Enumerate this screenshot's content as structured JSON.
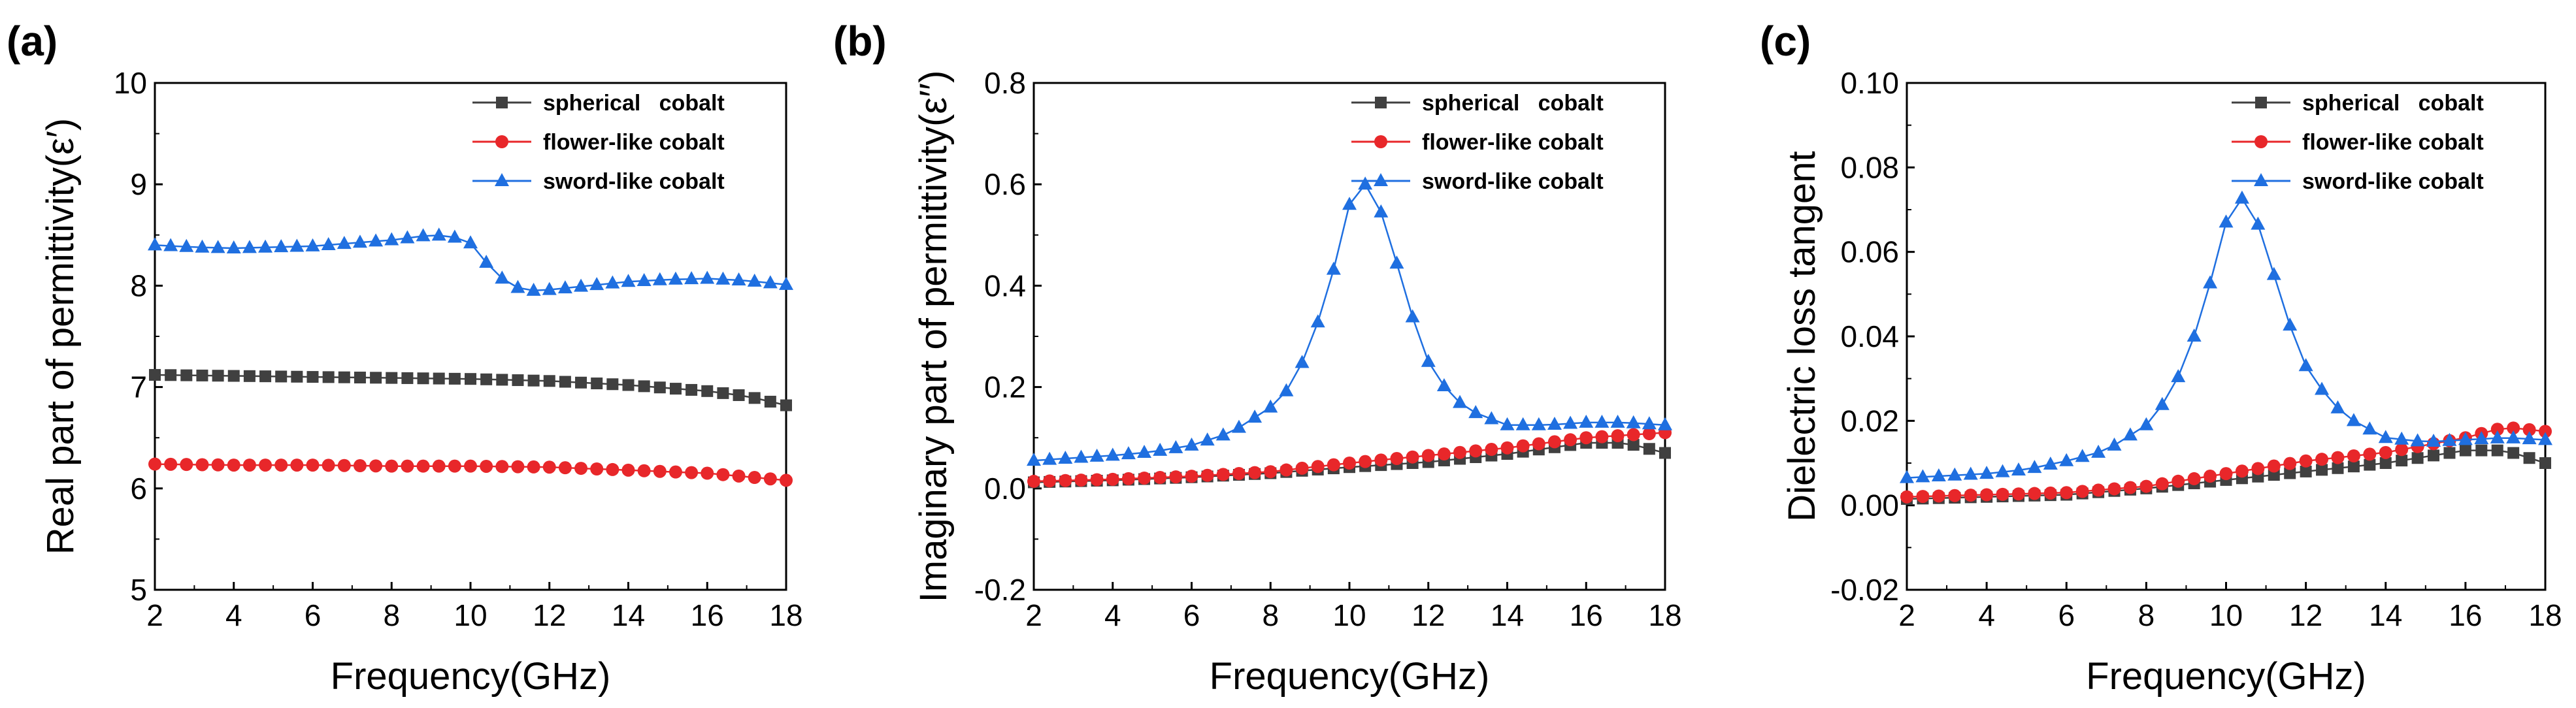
{
  "chart_data": [
    {
      "type": "line",
      "panel_label": "(a)",
      "xlabel": "Frequency(GHz)",
      "ylabel": "Real part of permittivity(ε′)",
      "xlim": [
        2,
        18
      ],
      "ylim": [
        5,
        10
      ],
      "xticks": [
        2,
        4,
        6,
        8,
        10,
        12,
        14,
        16,
        18
      ],
      "yticks": [
        5,
        6,
        7,
        8,
        9,
        10
      ],
      "xtick_labels": [
        "2",
        "4",
        "6",
        "8",
        "10",
        "12",
        "14",
        "16",
        "18"
      ],
      "ytick_labels": [
        "5",
        "6",
        "7",
        "8",
        "9",
        "10"
      ],
      "legend_position": "top-right",
      "series": [
        {
          "name": "spherical   cobalt",
          "color": "#404040",
          "marker": "square",
          "x": [
            2,
            4,
            6,
            8,
            10,
            12,
            14,
            16,
            17,
            18
          ],
          "y": [
            7.12,
            7.11,
            7.1,
            7.09,
            7.08,
            7.06,
            7.02,
            6.96,
            6.91,
            6.82
          ]
        },
        {
          "name": "flower-like cobalt",
          "color": "#e8272a",
          "marker": "circle",
          "x": [
            2,
            4,
            6,
            8,
            10,
            12,
            14,
            16,
            18
          ],
          "y": [
            6.24,
            6.23,
            6.23,
            6.22,
            6.22,
            6.21,
            6.18,
            6.15,
            6.08
          ]
        },
        {
          "name": "sword-like cobalt",
          "color": "#1f6fe0",
          "marker": "triangle",
          "x": [
            2,
            3,
            4,
            5,
            6,
            7,
            8,
            9,
            9.5,
            10,
            10.5,
            11,
            11.5,
            12,
            13,
            14,
            15,
            16,
            17,
            18
          ],
          "y": [
            8.4,
            8.38,
            8.37,
            8.38,
            8.39,
            8.42,
            8.45,
            8.5,
            8.49,
            8.42,
            8.18,
            8.0,
            7.95,
            7.96,
            8.0,
            8.04,
            8.06,
            8.07,
            8.05,
            8.01
          ]
        }
      ]
    },
    {
      "type": "line",
      "panel_label": "(b)",
      "xlabel": "Frequency(GHz)",
      "ylabel": "Imaginary part of permittivity(ε′′)",
      "xlim": [
        2,
        18
      ],
      "ylim": [
        -0.2,
        0.8
      ],
      "xticks": [
        2,
        4,
        6,
        8,
        10,
        12,
        14,
        16,
        18
      ],
      "yticks": [
        -0.2,
        0.0,
        0.2,
        0.4,
        0.6,
        0.8
      ],
      "xtick_labels": [
        "2",
        "4",
        "6",
        "8",
        "10",
        "12",
        "14",
        "16",
        "18"
      ],
      "ytick_labels": [
        "-0.2",
        "0.0",
        "0.2",
        "0.4",
        "0.6",
        "0.8"
      ],
      "legend_position": "top-right",
      "series": [
        {
          "name": "spherical   cobalt",
          "color": "#404040",
          "marker": "square",
          "x": [
            2,
            4,
            6,
            8,
            10,
            12,
            14,
            16,
            17,
            18
          ],
          "y": [
            0.012,
            0.016,
            0.022,
            0.03,
            0.042,
            0.052,
            0.068,
            0.09,
            0.09,
            0.07
          ]
        },
        {
          "name": "flower-like cobalt",
          "color": "#e8272a",
          "marker": "circle",
          "x": [
            2,
            4,
            6,
            8,
            10,
            12,
            14,
            16,
            18
          ],
          "y": [
            0.014,
            0.018,
            0.024,
            0.033,
            0.05,
            0.065,
            0.08,
            0.1,
            0.11
          ]
        },
        {
          "name": "sword-like cobalt",
          "color": "#1f6fe0",
          "marker": "triangle",
          "x": [
            2,
            3,
            4,
            5,
            6,
            7,
            8,
            8.5,
            9,
            9.5,
            10,
            10.3,
            10.6,
            11,
            11.5,
            12,
            12.5,
            13,
            14,
            15,
            16,
            17,
            18
          ],
          "y": [
            0.055,
            0.06,
            0.065,
            0.072,
            0.085,
            0.11,
            0.16,
            0.2,
            0.28,
            0.4,
            0.56,
            0.605,
            0.59,
            0.5,
            0.36,
            0.25,
            0.19,
            0.155,
            0.125,
            0.125,
            0.13,
            0.13,
            0.125
          ]
        }
      ]
    },
    {
      "type": "line",
      "panel_label": "(c)",
      "xlabel": "Frequency(GHz)",
      "ylabel": "Dielectric loss tangent",
      "xlim": [
        2,
        18
      ],
      "ylim": [
        -0.02,
        0.1
      ],
      "xticks": [
        2,
        4,
        6,
        8,
        10,
        12,
        14,
        16,
        18
      ],
      "yticks": [
        -0.02,
        0.0,
        0.02,
        0.04,
        0.06,
        0.08,
        0.1
      ],
      "xtick_labels": [
        "2",
        "4",
        "6",
        "8",
        "10",
        "12",
        "14",
        "16",
        "18"
      ],
      "ytick_labels": [
        "-0.02",
        "0.00",
        "0.02",
        "0.04",
        "0.06",
        "0.08",
        "0.10"
      ],
      "legend_position": "top-right",
      "series": [
        {
          "name": "spherical   cobalt",
          "color": "#404040",
          "marker": "square",
          "x": [
            2,
            4,
            6,
            8,
            10,
            12,
            14,
            16,
            17,
            18
          ],
          "y": [
            0.0015,
            0.002,
            0.0025,
            0.004,
            0.006,
            0.008,
            0.01,
            0.013,
            0.013,
            0.01
          ]
        },
        {
          "name": "flower-like cobalt",
          "color": "#e8272a",
          "marker": "circle",
          "x": [
            2,
            4,
            6,
            8,
            10,
            12,
            14,
            16,
            17,
            18
          ],
          "y": [
            0.002,
            0.0025,
            0.003,
            0.0045,
            0.0075,
            0.0105,
            0.0125,
            0.016,
            0.0185,
            0.0175
          ]
        },
        {
          "name": "sword-like cobalt",
          "color": "#1f6fe0",
          "marker": "triangle",
          "x": [
            2,
            3,
            4,
            5,
            6,
            7,
            8,
            8.5,
            9,
            9.5,
            10,
            10.3,
            10.6,
            11,
            11.5,
            12,
            12.5,
            13,
            14,
            15,
            16,
            17,
            18
          ],
          "y": [
            0.0065,
            0.007,
            0.0075,
            0.0085,
            0.0105,
            0.013,
            0.019,
            0.025,
            0.034,
            0.049,
            0.067,
            0.073,
            0.072,
            0.061,
            0.045,
            0.033,
            0.026,
            0.021,
            0.016,
            0.015,
            0.0155,
            0.016,
            0.0155
          ]
        }
      ]
    }
  ]
}
